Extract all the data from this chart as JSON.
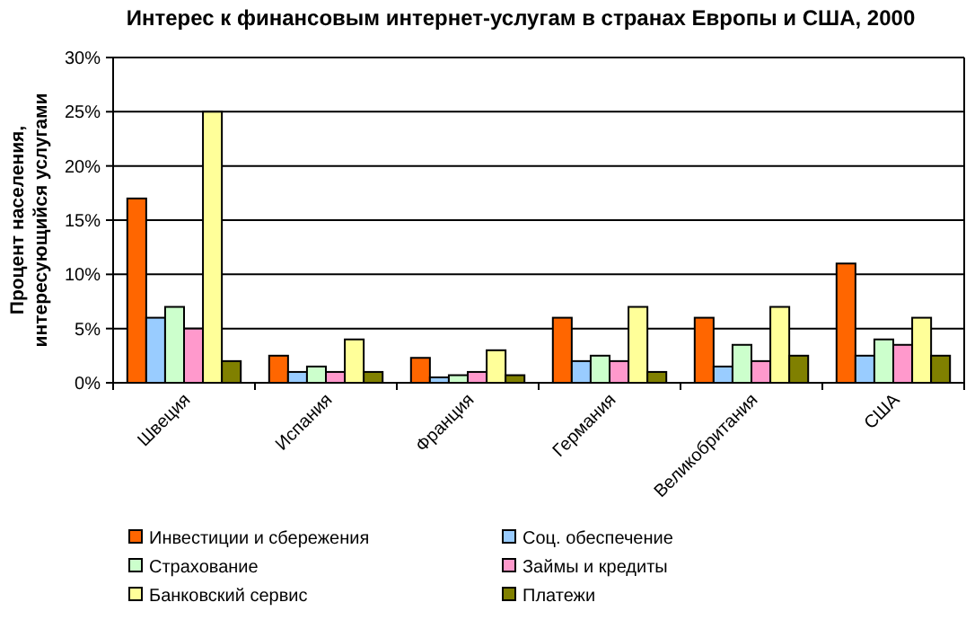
{
  "chart_data": {
    "type": "bar",
    "title": "Интерес к финансовым интернет-услугам в странах Европы и США, 2000",
    "ylabel": "Процент населения, интересующийся  услугами",
    "categories": [
      "Швеция",
      "Испания",
      "Франция",
      "Германия",
      "Великобритания",
      "США"
    ],
    "series": [
      {
        "name": "Инвестиции и сбережения",
        "color": "#ff6600",
        "values": [
          17,
          2.5,
          2.3,
          6,
          6,
          11
        ]
      },
      {
        "name": "Соц. обеспечение",
        "color": "#99ccff",
        "values": [
          6,
          1,
          0.5,
          2,
          1.5,
          2.5
        ]
      },
      {
        "name": "Страхование",
        "color": "#ccffcc",
        "values": [
          7,
          1.5,
          0.7,
          2.5,
          3.5,
          4
        ]
      },
      {
        "name": "Займы и кредиты",
        "color": "#ff99cc",
        "values": [
          5,
          1,
          1,
          2,
          2,
          3.5
        ]
      },
      {
        "name": "Банковский сервис",
        "color": "#ffff99",
        "values": [
          25,
          4,
          3,
          7,
          7,
          6
        ]
      },
      {
        "name": "Платежи",
        "color": "#808000",
        "values": [
          2,
          1,
          0.7,
          1,
          2.5,
          2.5
        ]
      }
    ],
    "ylim": [
      0,
      30
    ],
    "yticks": [
      {
        "value": 0,
        "label": "0%"
      },
      {
        "value": 5,
        "label": "5%"
      },
      {
        "value": 10,
        "label": "10%"
      },
      {
        "value": 15,
        "label": "15%"
      },
      {
        "value": 20,
        "label": "20%"
      },
      {
        "value": 25,
        "label": "25%"
      },
      {
        "value": 30,
        "label": "30%"
      }
    ],
    "grid": "y",
    "legend": "bottom"
  }
}
